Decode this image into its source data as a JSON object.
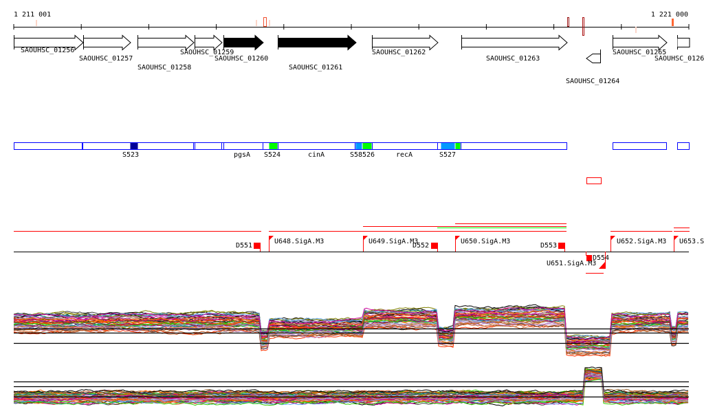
{
  "ruler": {
    "start_label": "1 211 001",
    "end_label": "1 221 000"
  },
  "genes": [
    {
      "id": "SAOUHSC_01256",
      "strand": "+",
      "filled": false
    },
    {
      "id": "SAOUHSC_01257",
      "strand": "+",
      "filled": false
    },
    {
      "id": "SAOUHSC_01258",
      "strand": "+",
      "filled": false
    },
    {
      "id": "SAOUHSC_01259",
      "strand": "+",
      "filled": false
    },
    {
      "id": "SAOUHSC_01260",
      "strand": "+",
      "filled": true
    },
    {
      "id": "SAOUHSC_01261",
      "strand": "+",
      "filled": true
    },
    {
      "id": "SAOUHSC_01262",
      "strand": "+",
      "filled": false
    },
    {
      "id": "SAOUHSC_01263",
      "strand": "+",
      "filled": false
    },
    {
      "id": "SAOUHSC_01264",
      "strand": "-",
      "filled": false
    },
    {
      "id": "SAOUHSC_01265",
      "strand": "+",
      "filled": false
    },
    {
      "id": "SAOUHSC_0126",
      "strand": "+",
      "filled": false
    }
  ],
  "features": [
    "S523",
    "pgsA",
    "S524",
    "cinA",
    "S58526",
    "recA",
    "S527"
  ],
  "transcripts": [
    "D551",
    "U648.SigA.M3",
    "U649.SigA.M3",
    "D552",
    "U650.SigA.M3",
    "D553",
    "D554",
    "U651.SigA.M3",
    "U652.SigA.M3",
    "U653.S"
  ],
  "colors": {
    "feature_border": "#0000ff",
    "green": "#00ff00",
    "light_blue": "#0099ff",
    "dark_blue": "#000099",
    "red": "#ff0000"
  }
}
